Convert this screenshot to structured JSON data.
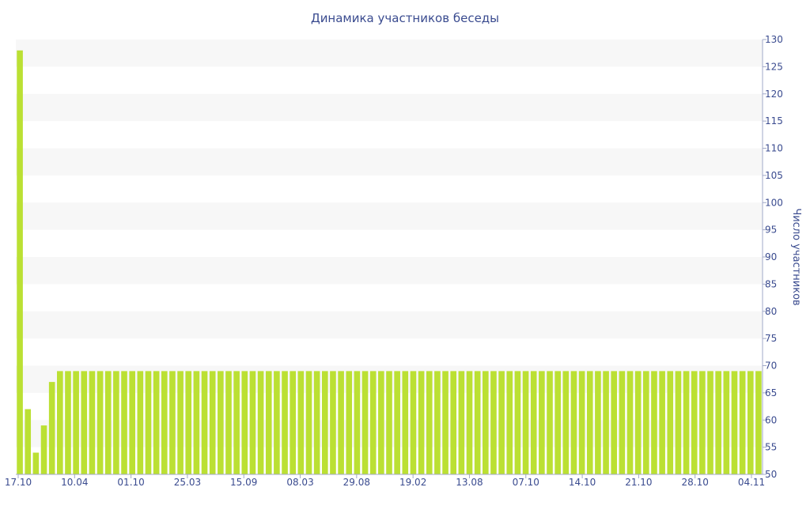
{
  "chart_data": {
    "type": "bar",
    "title": "Динамика участников беседы",
    "ylabel": "Число участников",
    "y_axis_side": "right",
    "ylim": [
      50,
      130
    ],
    "y_ticks": [
      50,
      55,
      60,
      65,
      70,
      75,
      80,
      85,
      90,
      95,
      100,
      105,
      110,
      115,
      120,
      125,
      130
    ],
    "x_tick_labels": [
      "17.10",
      "10.04",
      "01.10",
      "25.03",
      "15.09",
      "08.03",
      "29.08",
      "19.02",
      "13.08",
      "07.10",
      "14.10",
      "21.10",
      "28.10",
      "04.11"
    ],
    "bar_color": "#bbe033",
    "band_color": "#f7f7f7",
    "text_color": "#3a4b8f",
    "values": [
      128,
      62,
      54,
      59,
      67,
      69,
      69,
      69,
      69,
      69,
      69,
      69,
      69,
      69,
      69,
      69,
      69,
      69,
      69,
      69,
      69,
      69,
      69,
      69,
      69,
      69,
      69,
      69,
      69,
      69,
      69,
      69,
      69,
      69,
      69,
      69,
      69,
      69,
      69,
      69,
      69,
      69,
      69,
      69,
      69,
      69,
      69,
      69,
      69,
      69,
      69,
      69,
      69,
      69,
      69,
      69,
      69,
      69,
      69,
      69,
      69,
      69,
      69,
      69,
      69,
      69,
      69,
      69,
      69,
      69,
      69,
      69,
      69,
      69,
      69,
      69,
      69,
      69,
      69,
      69,
      69,
      69,
      69,
      69,
      69,
      69,
      69,
      69,
      69,
      69,
      69,
      69,
      69
    ]
  }
}
